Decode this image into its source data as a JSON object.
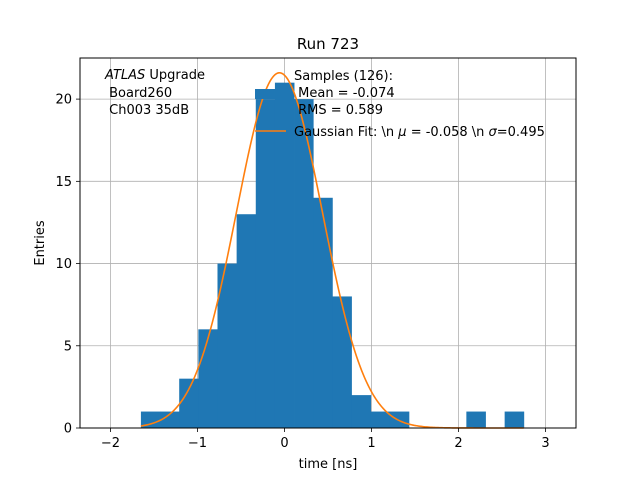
{
  "chart_data": {
    "type": "bar",
    "title": "Run 723",
    "xlabel": "time [ns]",
    "ylabel": "Entries",
    "xlim": [
      -2.35,
      3.35
    ],
    "ylim": [
      0,
      22.5
    ],
    "xticks": [
      -2,
      -1,
      0,
      1,
      2,
      3
    ],
    "yticks": [
      0,
      5,
      10,
      15,
      20
    ],
    "grid": true,
    "bin_edges": [
      -1.65,
      -1.43,
      -1.21,
      -0.99,
      -0.77,
      -0.55,
      -0.33,
      -0.11,
      0.11,
      0.33,
      0.55,
      0.77,
      0.99,
      1.21,
      1.43,
      1.65,
      1.87,
      2.09,
      2.31,
      2.53,
      2.75
    ],
    "counts": [
      1,
      1,
      3,
      6,
      10,
      13,
      20,
      21,
      20,
      14,
      8,
      2,
      1,
      1,
      0,
      0,
      0,
      1,
      0,
      1
    ],
    "series": [
      {
        "name": "Samples (126):\n Mean = -0.074\n RMS = 0.589",
        "kind": "histogram",
        "color": "#1f77b4"
      },
      {
        "name": "Gaussian Fit: \\n $\\mu$ = -0.058 \\n $\\sigma$=0.495",
        "kind": "line",
        "color": "#ff7f0e",
        "amplitude": 21.6,
        "mu": -0.058,
        "sigma": 0.495,
        "x_range": [
          -1.65,
          2.75
        ]
      }
    ],
    "annotation": {
      "line1_italic": "ATLAS",
      "line1_rest": " Upgrade",
      "line2": " Board260",
      "line3": " Ch003 35dB"
    },
    "legend": {
      "placement": "top-right",
      "samples_lines": [
        "Samples (126):",
        " Mean = -0.074",
        " RMS = 0.589"
      ],
      "fit_prefix": "Gaussian Fit: \\n ",
      "fit_mu_symbol": "μ",
      "fit_middle": " = -0.058 \\n ",
      "fit_sigma_symbol": "σ",
      "fit_suffix": "=0.495"
    }
  }
}
